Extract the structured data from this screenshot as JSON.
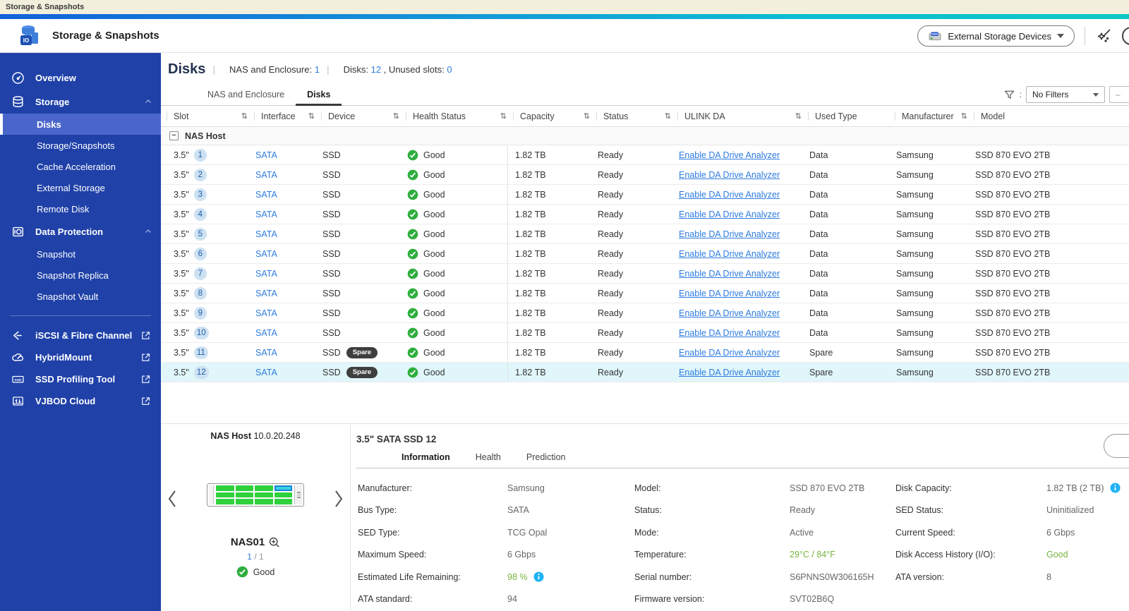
{
  "taskbar": {
    "title": "Storage & Snapshots"
  },
  "header": {
    "app_title": "Storage & Snapshots",
    "device_button_label": "External Storage Devices",
    "device_button_icon": "raid-device-icon"
  },
  "colors": {
    "accent_blue": "#2e7ce0",
    "sidebar_blue": "#1f41a8",
    "selected_row_bg": "#e0f6fa",
    "good_green": "#3fae49",
    "value_green": "#7ab43e",
    "info_blue": "#1db2f5",
    "gradient": [
      "#1262d9",
      "#1496d8",
      "#0cc9c6"
    ]
  },
  "sidebar": {
    "items": [
      {
        "label": "Overview",
        "icon": "gauge-icon",
        "children": []
      },
      {
        "label": "Storage",
        "icon": "storage-icon",
        "expanded": true,
        "children": [
          {
            "label": "Disks",
            "selected": true
          },
          {
            "label": "Storage/Snapshots"
          },
          {
            "label": "Cache Acceleration"
          },
          {
            "label": "External Storage"
          },
          {
            "label": "Remote Disk"
          }
        ]
      },
      {
        "label": "Data Protection",
        "icon": "data-protection-icon",
        "expanded": true,
        "children": [
          {
            "label": "Snapshot"
          },
          {
            "label": "Snapshot Replica"
          },
          {
            "label": "Snapshot Vault"
          }
        ]
      }
    ],
    "tools": [
      {
        "label": "iSCSI & Fibre Channel",
        "icon": "iscsi-icon"
      },
      {
        "label": "HybridMount",
        "icon": "hybridmount-icon"
      },
      {
        "label": "SSD Profiling Tool",
        "icon": "ssd-profiling-icon"
      },
      {
        "label": "VJBOD Cloud",
        "icon": "vjbod-cloud-icon"
      }
    ]
  },
  "page": {
    "title": "Disks",
    "stats": {
      "nas_label": "NAS and Enclosure:",
      "nas_value": "1",
      "disks_label": "Disks:",
      "disks_value": "12",
      "unused_label": ", Unused slots:",
      "unused_value": "0"
    },
    "tabs": [
      {
        "label": "NAS and Enclosure"
      },
      {
        "label": "Disks",
        "active": true
      }
    ],
    "filter_label": "No Filters",
    "edge_button_glyph": "–"
  },
  "table": {
    "columns": [
      {
        "label": "Slot",
        "sortable": true
      },
      {
        "label": "Interface",
        "sortable": true
      },
      {
        "label": "Device",
        "sortable": true
      },
      {
        "label": "Health Status",
        "sortable": true
      },
      {
        "label": "Capacity",
        "sortable": true
      },
      {
        "label": "Status",
        "sortable": true
      },
      {
        "label": "ULINK DA",
        "sortable": true
      },
      {
        "label": "Used Type",
        "sortable": false
      },
      {
        "label": "Manufacturer",
        "sortable": true
      },
      {
        "label": "Model",
        "sortable": false
      }
    ],
    "group_label": "NAS Host",
    "sort_glyph": "⇅",
    "rows": [
      {
        "slot": "3.5\"",
        "slot_no": "1",
        "interface": "SATA",
        "device": "SSD",
        "device_badge": "",
        "health": "Good",
        "capacity": "1.82 TB",
        "status": "Ready",
        "ulink": "Enable DA Drive Analyzer",
        "used_type": "Data",
        "manufacturer": "Samsung",
        "model": "SSD 870 EVO 2TB",
        "selected": false
      },
      {
        "slot": "3.5\"",
        "slot_no": "2",
        "interface": "SATA",
        "device": "SSD",
        "device_badge": "",
        "health": "Good",
        "capacity": "1.82 TB",
        "status": "Ready",
        "ulink": "Enable DA Drive Analyzer",
        "used_type": "Data",
        "manufacturer": "Samsung",
        "model": "SSD 870 EVO 2TB",
        "selected": false
      },
      {
        "slot": "3.5\"",
        "slot_no": "3",
        "interface": "SATA",
        "device": "SSD",
        "device_badge": "",
        "health": "Good",
        "capacity": "1.82 TB",
        "status": "Ready",
        "ulink": "Enable DA Drive Analyzer",
        "used_type": "Data",
        "manufacturer": "Samsung",
        "model": "SSD 870 EVO 2TB",
        "selected": false
      },
      {
        "slot": "3.5\"",
        "slot_no": "4",
        "interface": "SATA",
        "device": "SSD",
        "device_badge": "",
        "health": "Good",
        "capacity": "1.82 TB",
        "status": "Ready",
        "ulink": "Enable DA Drive Analyzer",
        "used_type": "Data",
        "manufacturer": "Samsung",
        "model": "SSD 870 EVO 2TB",
        "selected": false
      },
      {
        "slot": "3.5\"",
        "slot_no": "5",
        "interface": "SATA",
        "device": "SSD",
        "device_badge": "",
        "health": "Good",
        "capacity": "1.82 TB",
        "status": "Ready",
        "ulink": "Enable DA Drive Analyzer",
        "used_type": "Data",
        "manufacturer": "Samsung",
        "model": "SSD 870 EVO 2TB",
        "selected": false
      },
      {
        "slot": "3.5\"",
        "slot_no": "6",
        "interface": "SATA",
        "device": "SSD",
        "device_badge": "",
        "health": "Good",
        "capacity": "1.82 TB",
        "status": "Ready",
        "ulink": "Enable DA Drive Analyzer",
        "used_type": "Data",
        "manufacturer": "Samsung",
        "model": "SSD 870 EVO 2TB",
        "selected": false
      },
      {
        "slot": "3.5\"",
        "slot_no": "7",
        "interface": "SATA",
        "device": "SSD",
        "device_badge": "",
        "health": "Good",
        "capacity": "1.82 TB",
        "status": "Ready",
        "ulink": "Enable DA Drive Analyzer",
        "used_type": "Data",
        "manufacturer": "Samsung",
        "model": "SSD 870 EVO 2TB",
        "selected": false
      },
      {
        "slot": "3.5\"",
        "slot_no": "8",
        "interface": "SATA",
        "device": "SSD",
        "device_badge": "",
        "health": "Good",
        "capacity": "1.82 TB",
        "status": "Ready",
        "ulink": "Enable DA Drive Analyzer",
        "used_type": "Data",
        "manufacturer": "Samsung",
        "model": "SSD 870 EVO 2TB",
        "selected": false
      },
      {
        "slot": "3.5\"",
        "slot_no": "9",
        "interface": "SATA",
        "device": "SSD",
        "device_badge": "",
        "health": "Good",
        "capacity": "1.82 TB",
        "status": "Ready",
        "ulink": "Enable DA Drive Analyzer",
        "used_type": "Data",
        "manufacturer": "Samsung",
        "model": "SSD 870 EVO 2TB",
        "selected": false
      },
      {
        "slot": "3.5\"",
        "slot_no": "10",
        "interface": "SATA",
        "device": "SSD",
        "device_badge": "",
        "health": "Good",
        "capacity": "1.82 TB",
        "status": "Ready",
        "ulink": "Enable DA Drive Analyzer",
        "used_type": "Data",
        "manufacturer": "Samsung",
        "model": "SSD 870 EVO 2TB",
        "selected": false
      },
      {
        "slot": "3.5\"",
        "slot_no": "11",
        "interface": "SATA",
        "device": "SSD",
        "device_badge": "Spare",
        "health": "Good",
        "capacity": "1.82 TB",
        "status": "Ready",
        "ulink": "Enable DA Drive Analyzer",
        "used_type": "Spare",
        "manufacturer": "Samsung",
        "model": "SSD 870 EVO 2TB",
        "selected": false
      },
      {
        "slot": "3.5\"",
        "slot_no": "12",
        "interface": "SATA",
        "device": "SSD",
        "device_badge": "Spare",
        "health": "Good",
        "capacity": "1.82 TB",
        "status": "Ready",
        "ulink": "Enable DA Drive Analyzer",
        "used_type": "Spare",
        "manufacturer": "Samsung",
        "model": "SSD 870 EVO 2TB",
        "selected": true
      }
    ]
  },
  "enclosure": {
    "host_label": "NAS Host",
    "host_ip": "10.0.20.248",
    "name": "NAS01",
    "page_current": "1",
    "page_sep": "/",
    "page_total": "1",
    "health_label": "Good",
    "bay_cols": 4,
    "bay_rows": 3,
    "selected_bay_index": 3
  },
  "detail": {
    "title": "3.5\" SATA SSD 12",
    "tabs": [
      {
        "label": "Information",
        "active": true
      },
      {
        "label": "Health"
      },
      {
        "label": "Prediction"
      }
    ],
    "columns": [
      [
        {
          "label": "Manufacturer:",
          "value": "Samsung"
        },
        {
          "label": "Bus Type:",
          "value": "SATA"
        },
        {
          "label": "SED Type:",
          "value": "TCG Opal"
        },
        {
          "label": "Maximum Speed:",
          "value": "6 Gbps"
        },
        {
          "label": "Estimated Life Remaining:",
          "value": "98 %",
          "green": true,
          "info": true
        },
        {
          "label": "ATA standard:",
          "value": "94"
        }
      ],
      [
        {
          "label": "Model:",
          "value": "SSD 870 EVO 2TB"
        },
        {
          "label": "Status:",
          "value": "Ready"
        },
        {
          "label": "Mode:",
          "value": "Active"
        },
        {
          "label": "Temperature:",
          "value": "29°C / 84°F",
          "green": true
        },
        {
          "label": "Serial number:",
          "value": "S6PNNS0W306165H"
        },
        {
          "label": "Firmware version:",
          "value": "SVT02B6Q"
        }
      ],
      [
        {
          "label": "Disk Capacity:",
          "value": "1.82 TB (2 TB)",
          "info": true
        },
        {
          "label": "SED Status:",
          "value": "Uninitialized"
        },
        {
          "label": "Current Speed:",
          "value": "6 Gbps"
        },
        {
          "label": "Disk Access History (I/O):",
          "value": "Good",
          "green": true
        },
        {
          "label": "ATA version:",
          "value": "8"
        }
      ]
    ]
  }
}
